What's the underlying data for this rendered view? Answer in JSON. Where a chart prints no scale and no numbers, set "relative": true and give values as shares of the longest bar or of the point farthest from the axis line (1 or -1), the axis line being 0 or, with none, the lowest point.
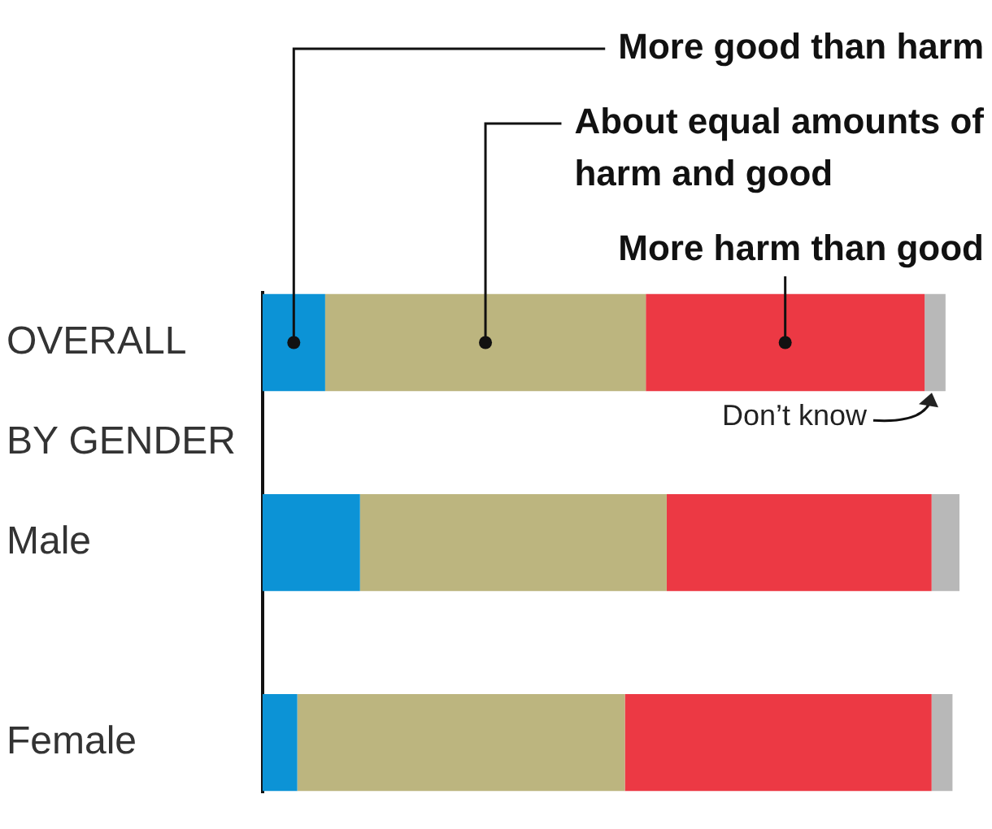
{
  "chart_data": {
    "type": "bar",
    "orientation": "horizontal",
    "stacked": true,
    "relative": true,
    "categories": [
      "OVERALL",
      "BY GENDER",
      "Male",
      null,
      "Female"
    ],
    "series": [
      {
        "name": "More good than harm",
        "color": "#0c93d6",
        "values": [
          0.09,
          null,
          0.14,
          null,
          0.05
        ]
      },
      {
        "name": "About equal amounts of harm and good",
        "color": "#bcb57f",
        "values": [
          0.46,
          null,
          0.44,
          null,
          0.47
        ]
      },
      {
        "name": "More harm than good",
        "color": "#ec3944",
        "values": [
          0.4,
          null,
          0.38,
          null,
          0.44
        ]
      },
      {
        "name": "Don’t know",
        "color": "#b8b8b8",
        "values": [
          0.03,
          null,
          0.04,
          null,
          0.03
        ]
      }
    ],
    "legend": false,
    "grid": false
  }
}
